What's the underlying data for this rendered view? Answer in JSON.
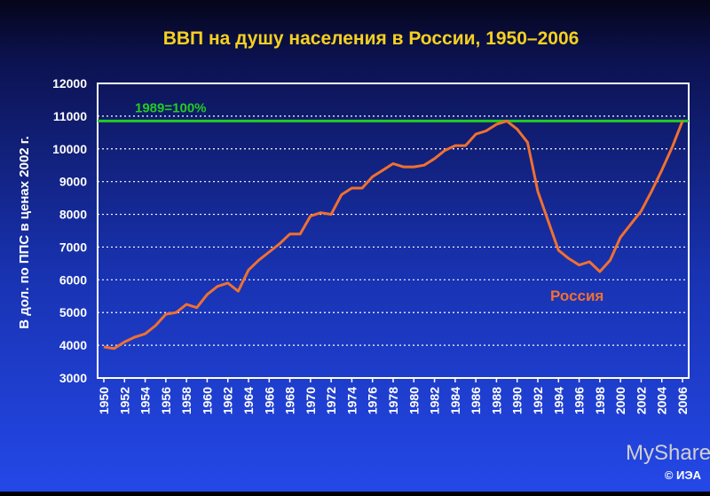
{
  "chart_data": {
    "type": "line",
    "title": "ВВП на душу населения в России, 1950–2006",
    "y_label": "В дол. по ППС в ценах 2002 г.",
    "x": [
      1950,
      1951,
      1952,
      1953,
      1954,
      1955,
      1956,
      1957,
      1958,
      1959,
      1960,
      1961,
      1962,
      1963,
      1964,
      1965,
      1966,
      1967,
      1968,
      1969,
      1970,
      1971,
      1972,
      1973,
      1974,
      1975,
      1976,
      1977,
      1978,
      1979,
      1980,
      1981,
      1982,
      1983,
      1984,
      1985,
      1986,
      1987,
      1988,
      1989,
      1990,
      1991,
      1992,
      1993,
      1994,
      1995,
      1996,
      1997,
      1998,
      1999,
      2000,
      2001,
      2002,
      2003,
      2004,
      2005,
      2006
    ],
    "series": [
      {
        "name": "Россия",
        "color": "#f07030",
        "values": [
          3950,
          3900,
          4100,
          4250,
          4350,
          4600,
          4950,
          5000,
          5250,
          5150,
          5550,
          5800,
          5900,
          5650,
          6300,
          6600,
          6850,
          7100,
          7400,
          7400,
          7950,
          8050,
          8000,
          8600,
          8800,
          8800,
          9150,
          9350,
          9550,
          9450,
          9450,
          9500,
          9700,
          9950,
          10100,
          10100,
          10450,
          10550,
          10750,
          10850,
          10600,
          10200,
          8700,
          7800,
          6900,
          6650,
          6450,
          6550,
          6250,
          6600,
          7300,
          7700,
          8100,
          8700,
          9350,
          10050,
          10850
        ]
      }
    ],
    "reference_line": {
      "value": 10850,
      "label": "1989=100%",
      "color": "#22cc22"
    },
    "xlim": [
      1950,
      2006
    ],
    "xticks": [
      1950,
      1952,
      1954,
      1956,
      1958,
      1960,
      1962,
      1964,
      1966,
      1968,
      1970,
      1972,
      1974,
      1976,
      1978,
      1980,
      1982,
      1984,
      1986,
      1988,
      1990,
      1992,
      1994,
      1996,
      1998,
      2000,
      2002,
      2004,
      2006
    ],
    "ylim": [
      3000,
      12000
    ],
    "yticks": [
      3000,
      4000,
      5000,
      6000,
      7000,
      8000,
      9000,
      10000,
      11000,
      12000
    ],
    "grid": true,
    "watermark": "MyShared",
    "credit": "© ИЭА"
  }
}
